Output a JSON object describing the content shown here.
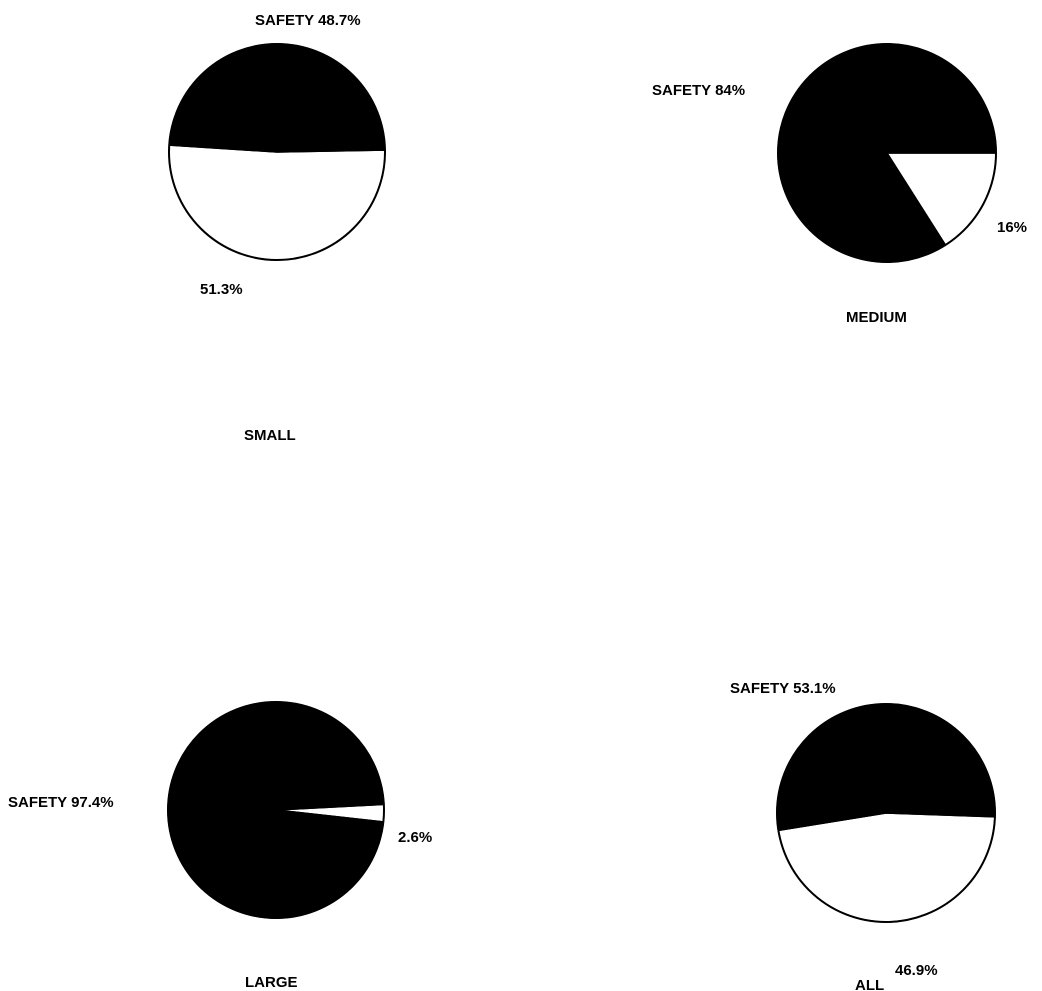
{
  "chart_data": [
    {
      "type": "pie",
      "title": "SMALL",
      "slices": [
        {
          "label": "SAFETY 48.7%",
          "value": 48.7,
          "color": "#000000"
        },
        {
          "label": "51.3%",
          "value": 51.3,
          "color": "#ffffff"
        }
      ]
    },
    {
      "type": "pie",
      "title": "MEDIUM",
      "slices": [
        {
          "label": "SAFETY 84%",
          "value": 84,
          "color": "#000000"
        },
        {
          "label": "16%",
          "value": 16,
          "color": "#ffffff"
        }
      ]
    },
    {
      "type": "pie",
      "title": "LARGE",
      "slices": [
        {
          "label": "SAFETY 97.4%",
          "value": 97.4,
          "color": "#000000"
        },
        {
          "label": "2.6%",
          "value": 2.6,
          "color": "#ffffff"
        }
      ]
    },
    {
      "type": "pie",
      "title": "ALL",
      "slices": [
        {
          "label": "SAFETY 53.1%",
          "value": 53.1,
          "color": "#000000"
        },
        {
          "label": "46.9%",
          "value": 46.9,
          "color": "#ffffff"
        }
      ]
    }
  ]
}
